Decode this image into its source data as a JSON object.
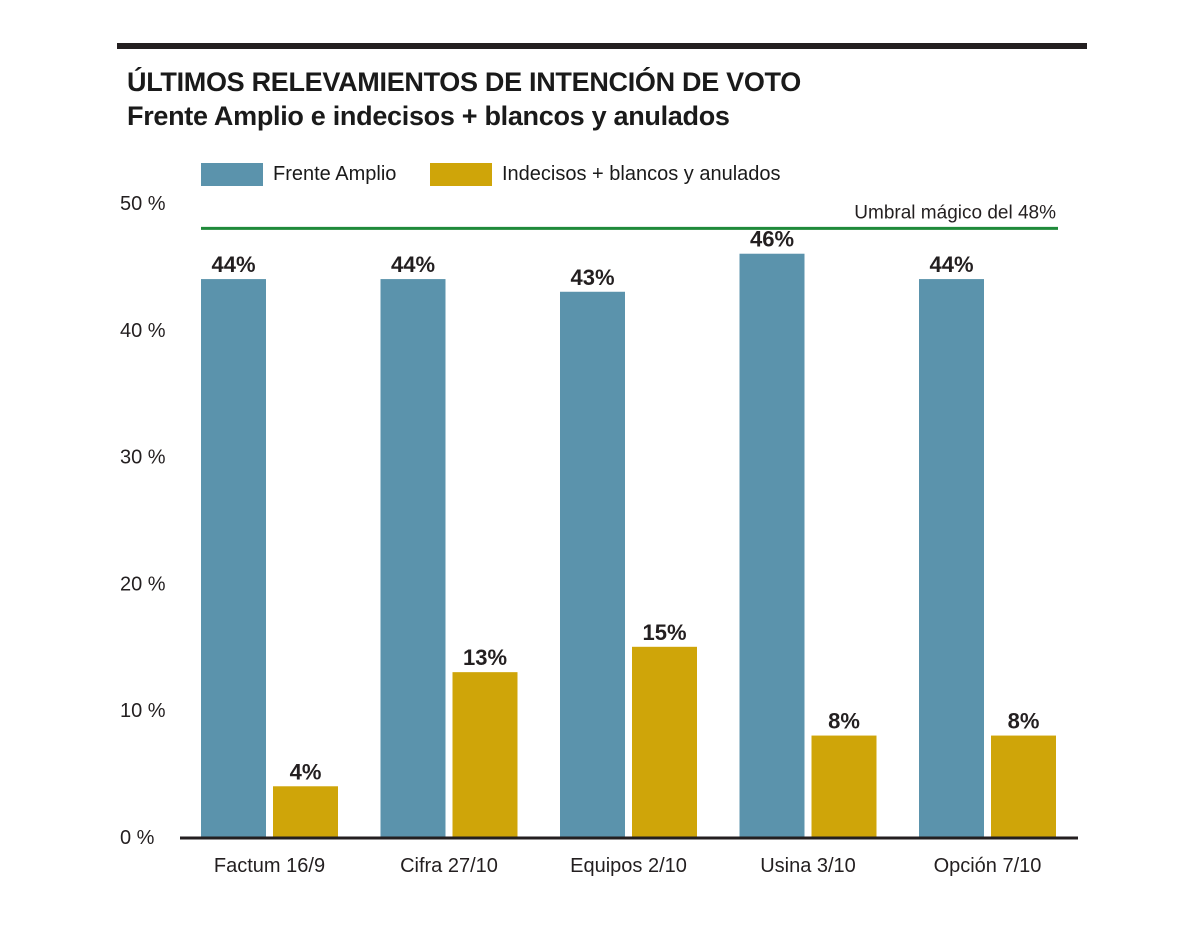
{
  "colors": {
    "frente_amplio": "#5b93ac",
    "indecisos": "#cfa509",
    "threshold": "#1f8a3a",
    "axis": "#231f20"
  },
  "chart_data": {
    "type": "bar",
    "title": "ÚLTIMOS RELEVAMIENTOS DE INTENCIÓN DE VOTO",
    "subtitle": "Frente Amplio e indecisos + blancos y anulados",
    "categories": [
      "Factum 16/9",
      "Cifra 27/10",
      "Equipos 2/10",
      "Usina 3/10",
      "Opción 7/10"
    ],
    "series": [
      {
        "name": "Frente Amplio",
        "values": [
          44,
          44,
          43,
          46,
          44
        ],
        "labels": [
          "44%",
          "44%",
          "43%",
          "46%",
          "44%"
        ]
      },
      {
        "name": "Indecisos + blancos y anulados",
        "values": [
          4,
          13,
          15,
          8,
          8
        ],
        "labels": [
          "4%",
          "13%",
          "15%",
          "8%",
          "8%"
        ]
      }
    ],
    "yticks": [
      0,
      10,
      20,
      30,
      40,
      50
    ],
    "ytick_labels": [
      "0 %",
      "10 %",
      "20 %",
      "30 %",
      "40 %",
      "50 %"
    ],
    "ylim": [
      0,
      50
    ],
    "threshold": {
      "value": 48,
      "label": "Umbral mágico del 48%"
    },
    "legend_position": "top-left",
    "grid": false
  }
}
